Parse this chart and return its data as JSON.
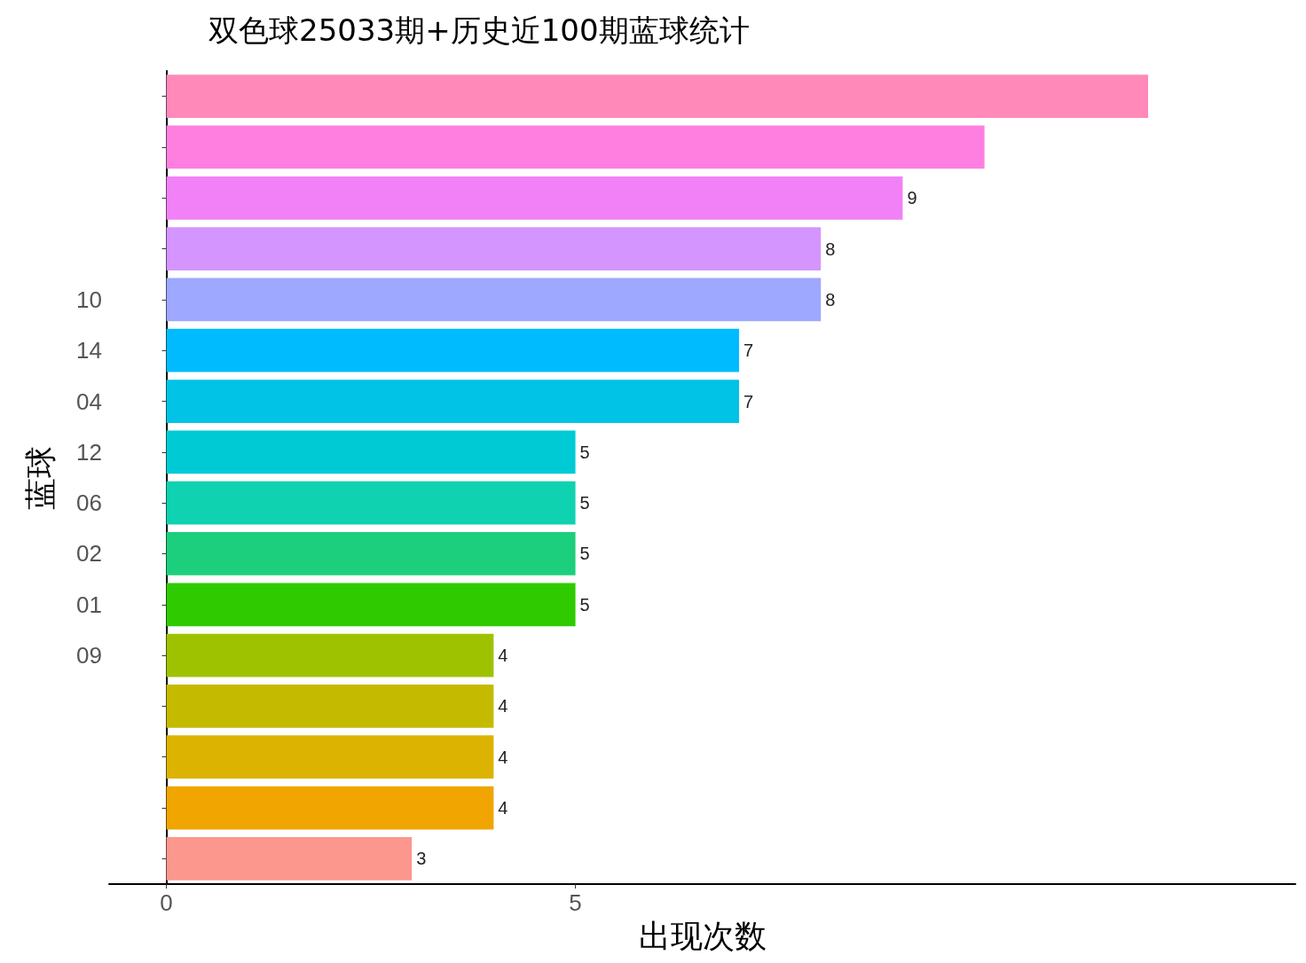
{
  "chart_data": {
    "type": "bar",
    "orientation": "horizontal",
    "title": "双色球25033期+历史近100期蓝球统计",
    "xlabel": "出现次数",
    "ylabel": "蓝球",
    "categories": [
      null,
      null,
      null,
      null,
      "10",
      "14",
      "04",
      "12",
      "06",
      "02",
      "01",
      "09",
      null,
      null,
      null,
      null
    ],
    "values": [
      12,
      10,
      9,
      8,
      8,
      7,
      7,
      5,
      5,
      5,
      5,
      4,
      4,
      4,
      4,
      3
    ],
    "value_labels": [
      null,
      null,
      "9",
      "8",
      "8",
      "7",
      "7",
      "5",
      "5",
      "5",
      "5",
      "4",
      "4",
      "4",
      "4",
      "3"
    ],
    "colors": [
      "#ff89b9",
      "#ff7fe1",
      "#f281f7",
      "#d495ff",
      "#9ea8ff",
      "#00bcff",
      "#00c3e6",
      "#00cbd5",
      "#0fd2b0",
      "#1ccf7d",
      "#2fcb00",
      "#9fc200",
      "#c4ba00",
      "#dbb300",
      "#f0a500",
      "#fc978e"
    ],
    "xlim": [
      -0.7,
      13.8
    ],
    "xticks": [
      0,
      5
    ]
  }
}
